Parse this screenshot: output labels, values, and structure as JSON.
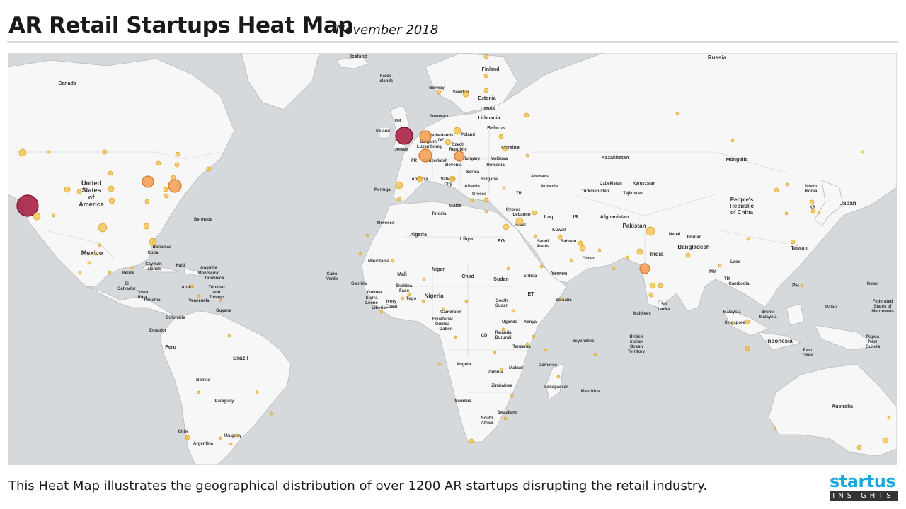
{
  "header": {
    "title": "AR Retail Startups Heat Map",
    "date": "November 2018"
  },
  "footer": {
    "description": "This Heat Map illustrates the geographical distribution of over 1200 AR startups disrupting the retail industry."
  },
  "logo": {
    "top": "startus",
    "bottom": "INSIGHTS"
  },
  "colors": {
    "ocean": "#d6d9dc",
    "land": "#f7f7f7",
    "low": "#f5c042",
    "mid": "#f39c4f",
    "high": "#a3163a"
  },
  "map_labels": {
    "iceland": "Iceland",
    "faroe": "Faroe Islands",
    "finland": "Finland",
    "norway": "Norway",
    "sweden": "Sweden",
    "estonia": "Estonia",
    "latvia": "Latvia",
    "lithuania": "Lithuania",
    "denmark": "Denmark",
    "gb": "GB",
    "ireland": "Ireland",
    "netherlands": "Netherlands",
    "belarus": "Belarus",
    "poland": "Poland",
    "belgium": "Belgium",
    "de": "DE",
    "luxembourg": "Luxembourg",
    "czech": "Czech Republic",
    "ukraine": "Ukraine",
    "jersey": "Jersey",
    "fr": "FR",
    "switzerland": "Switzerland",
    "hungary": "Hungary",
    "moldova": "Moldova",
    "slovenia": "Slovenia",
    "romania": "Romania",
    "serbia": "Serbia",
    "andorra": "Andorra",
    "bulgaria": "Bulgaria",
    "vatican": "Vatican City",
    "portugal": "Portugal",
    "albania": "Albania",
    "greece": "Greece",
    "tr": "TR",
    "malta": "Malta",
    "tunisia": "Tunisia",
    "cyprus": "Cyprus",
    "lebanon": "Lebanon",
    "israel": "Israel",
    "russia": "Russia",
    "kazakhstan": "Kazakhstan",
    "mongolia": "Mongolia",
    "abkhazia": "Abkhazia",
    "uzbekistan": "Uzbekistan",
    "kyrgyzstan": "Kyrgyzstan",
    "armenia": "Armenia",
    "turkmenistan": "Turkmenistan",
    "tajikistan": "Tajikistan",
    "north_korea": "North Korea",
    "prc": "People's Republic of China",
    "kr": "KR",
    "japan": "Japan",
    "iraq": "Iraq",
    "ir": "IR",
    "afghanistan": "Afghanistan",
    "kuwait": "Kuwait",
    "saudi": "Saudi Arabia",
    "bahrain": "Bahrain",
    "pakistan": "Pakistan",
    "nepal": "Nepal",
    "bhutan": "Bhutan",
    "bangladesh": "Bangladesh",
    "taiwan": "Taiwan",
    "eg": "EG",
    "libya": "Libya",
    "oman": "Oman",
    "india": "India",
    "morocco": "Morocco",
    "algeria": "Algeria",
    "mm": "MM",
    "laos": "Laos",
    "mauritania": "Mauritania",
    "mali": "Mali",
    "niger": "Niger",
    "eritrea": "Eritrea",
    "yemen": "Yemen",
    "th": "TH",
    "cambodia": "Cambodia",
    "chad": "Chad",
    "sudan": "Sudan",
    "et": "ET",
    "ph": "PH",
    "cabo_verde": "Cabo Verde",
    "gambia": "Gambia",
    "burkina_faso": "Burkina Faso",
    "guinea": "Guinea",
    "sierra_leone": "Sierra Leone",
    "ivory_coast": "Ivory Coast",
    "togo": "Togo",
    "nigeria": "Nigeria",
    "liberia": "Liberia",
    "south_sudan": "South Sudan",
    "somalia": "Somalia",
    "sri_lanka": "Sri Lanka",
    "cameroon": "Cameroon",
    "equatorial_guinea": "Equatorial Guinea",
    "gabon": "Gabon",
    "maldives": "Maldives",
    "malaysia": "Malaysia",
    "brunei": "Brunei Malaysia",
    "guam": "Guam",
    "palau": "Palau",
    "micronesia": "Federated States of Micronesia",
    "cd": "CD",
    "uganda": "Uganda",
    "kenya": "Kenya",
    "rwanda": "Rwanda",
    "burundi": "Burundi",
    "singapore": "Singapore",
    "seychelles": "Seychelles",
    "biot": "British Indian Ocean Territory",
    "indonesia": "Indonesia",
    "tanzania": "Tanzania",
    "east_timor": "East Timor",
    "papua": "Papua New Guinea",
    "comoros": "Comoros",
    "angola": "Angola",
    "zambia": "Zambia",
    "malawi": "Malawi",
    "zimbabwe": "Zimbabwe",
    "madagascar": "Madagascar",
    "mauritius": "Mauritius",
    "namibia": "Namibia",
    "australia": "Australia",
    "swaziland": "Swaziland",
    "south_africa": "South Africa",
    "canada": "Canada",
    "usa": "United States of America",
    "bermuda": "Bermuda",
    "mexico": "Mexico",
    "bahamas": "Bahamas",
    "cuba": "Cuba",
    "cayman": "Cayman Islands",
    "haiti": "Haiti",
    "anguilla": "Anguilla",
    "montserrat": "Montserrat",
    "dominica": "Dominica",
    "belize": "Belize",
    "el_salvador": "El Salvador",
    "aruba": "Aruba",
    "trinidad": "Trinidad and Tobago",
    "costa_rica": "Costa Rica",
    "venezuela": "Venezuela",
    "panama": "Panama",
    "guyana": "Guyana",
    "colombia": "Colombia",
    "ecuador": "Ecuador",
    "peru": "Peru",
    "brazil": "Brazil",
    "bolivia": "Bolivia",
    "paraguay": "Paraguay",
    "chile": "Chile",
    "uruguay": "Uruguay",
    "argentina": "Argentina"
  },
  "startup_hubs": [
    {
      "name": "San Francisco Bay Area",
      "level": "high"
    },
    {
      "name": "United Kingdom",
      "level": "high"
    },
    {
      "name": "Netherlands",
      "level": "mid"
    },
    {
      "name": "Switzerland",
      "level": "mid"
    },
    {
      "name": "Hungary",
      "level": "mid"
    },
    {
      "name": "Toronto",
      "level": "mid"
    },
    {
      "name": "New York",
      "level": "mid"
    },
    {
      "name": "Bangalore",
      "level": "mid"
    },
    {
      "name": "Los Angeles",
      "level": "low"
    }
  ]
}
